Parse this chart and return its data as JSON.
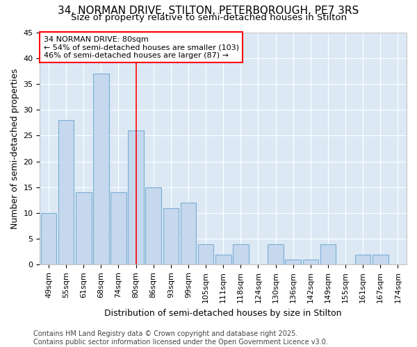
{
  "title1": "34, NORMAN DRIVE, STILTON, PETERBOROUGH, PE7 3RS",
  "title2": "Size of property relative to semi-detached houses in Stilton",
  "xlabel": "Distribution of semi-detached houses by size in Stilton",
  "ylabel": "Number of semi-detached properties",
  "categories": [
    "49sqm",
    "55sqm",
    "61sqm",
    "68sqm",
    "74sqm",
    "80sqm",
    "86sqm",
    "93sqm",
    "99sqm",
    "105sqm",
    "111sqm",
    "118sqm",
    "124sqm",
    "130sqm",
    "136sqm",
    "142sqm",
    "149sqm",
    "155sqm",
    "161sqm",
    "167sqm",
    "174sqm"
  ],
  "values": [
    10,
    28,
    14,
    37,
    14,
    26,
    15,
    11,
    12,
    4,
    2,
    4,
    0,
    4,
    1,
    1,
    4,
    0,
    2,
    2,
    0
  ],
  "bar_color": "#c5d8ed",
  "bar_edge_color": "#7aafd4",
  "red_line_index": 5,
  "annotation_title": "34 NORMAN DRIVE: 80sqm",
  "annotation_line1": "← 54% of semi-detached houses are smaller (103)",
  "annotation_line2": "46% of semi-detached houses are larger (87) →",
  "ylim": [
    0,
    45
  ],
  "yticks": [
    0,
    5,
    10,
    15,
    20,
    25,
    30,
    35,
    40,
    45
  ],
  "fig_bg_color": "#ffffff",
  "plot_bg_color": "#dce9f5",
  "grid_color": "#ffffff",
  "title_fontsize": 11,
  "subtitle_fontsize": 9.5,
  "axis_label_fontsize": 9,
  "tick_fontsize": 8,
  "footer_fontsize": 7,
  "footer1": "Contains HM Land Registry data © Crown copyright and database right 2025.",
  "footer2": "Contains public sector information licensed under the Open Government Licence v3.0."
}
